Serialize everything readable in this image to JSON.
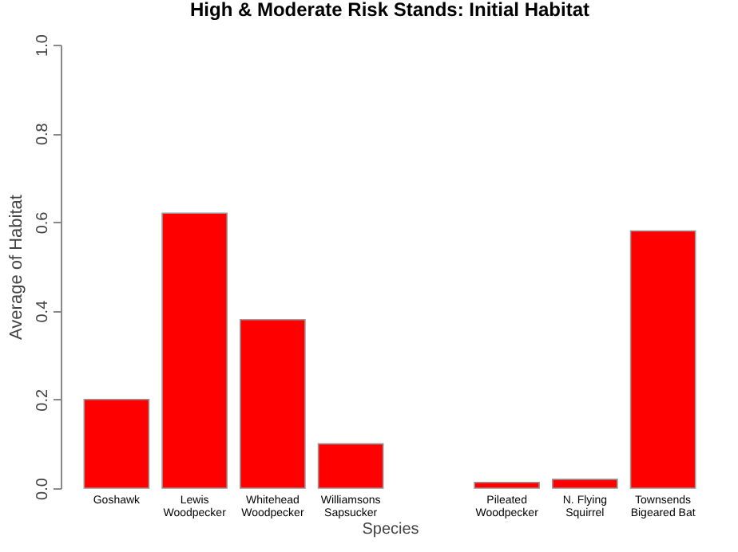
{
  "chart_data": {
    "type": "bar",
    "title": "High & Moderate Risk Stands: Initial Habitat",
    "xlabel": "Species",
    "ylabel": "Average of Habitat",
    "categories": [
      "Goshawk",
      "Lewis\nWoodpecker",
      "Whitehead\nWoodpecker",
      "Williamsons\nSapsucker",
      null,
      "Pileated\nWoodpecker",
      "N. Flying\nSquirrel",
      "Townsends\nBigeared Bat"
    ],
    "values": [
      0.2,
      0.62,
      0.38,
      0.1,
      null,
      0.013,
      0.02,
      0.58
    ],
    "color": "#ff0000",
    "ylim": [
      0,
      1
    ],
    "yticks": [
      {
        "value": 0,
        "label": "0.0"
      },
      {
        "value": 0.2,
        "label": "0.2"
      },
      {
        "value": 0.4,
        "label": "0.4"
      },
      {
        "value": 0.6,
        "label": "0.6"
      },
      {
        "value": 0.8,
        "label": "0.8"
      },
      {
        "value": 1,
        "label": "1.0"
      }
    ],
    "grid": false
  }
}
